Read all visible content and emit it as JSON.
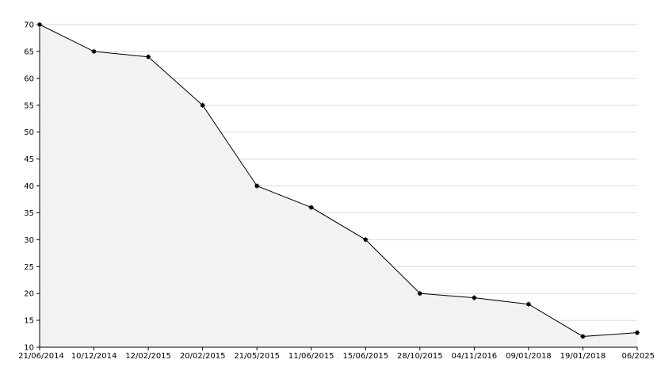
{
  "chart_data": {
    "type": "area",
    "title": "",
    "xlabel": "",
    "ylabel": "",
    "categories": [
      "21/06/2014",
      "10/12/2014",
      "12/02/2015",
      "20/02/2015",
      "21/05/2015",
      "11/06/2015",
      "15/06/2015",
      "28/10/2015",
      "04/11/2016",
      "09/01/2018",
      "19/01/2018",
      "06/2025"
    ],
    "series": [
      {
        "values": [
          70,
          65,
          64,
          55,
          40,
          36,
          30,
          20,
          19.2,
          18,
          12,
          12.7
        ]
      }
    ],
    "ylim": [
      10,
      70
    ],
    "yticks": [
      10,
      15,
      20,
      25,
      30,
      35,
      40,
      45,
      50,
      55,
      60,
      65,
      70
    ],
    "grid": true,
    "legend": "none",
    "colors": {
      "line": "#000000",
      "fill": "#f2f2f2",
      "grid": "#d8d8d8",
      "marker": "#000000"
    }
  }
}
